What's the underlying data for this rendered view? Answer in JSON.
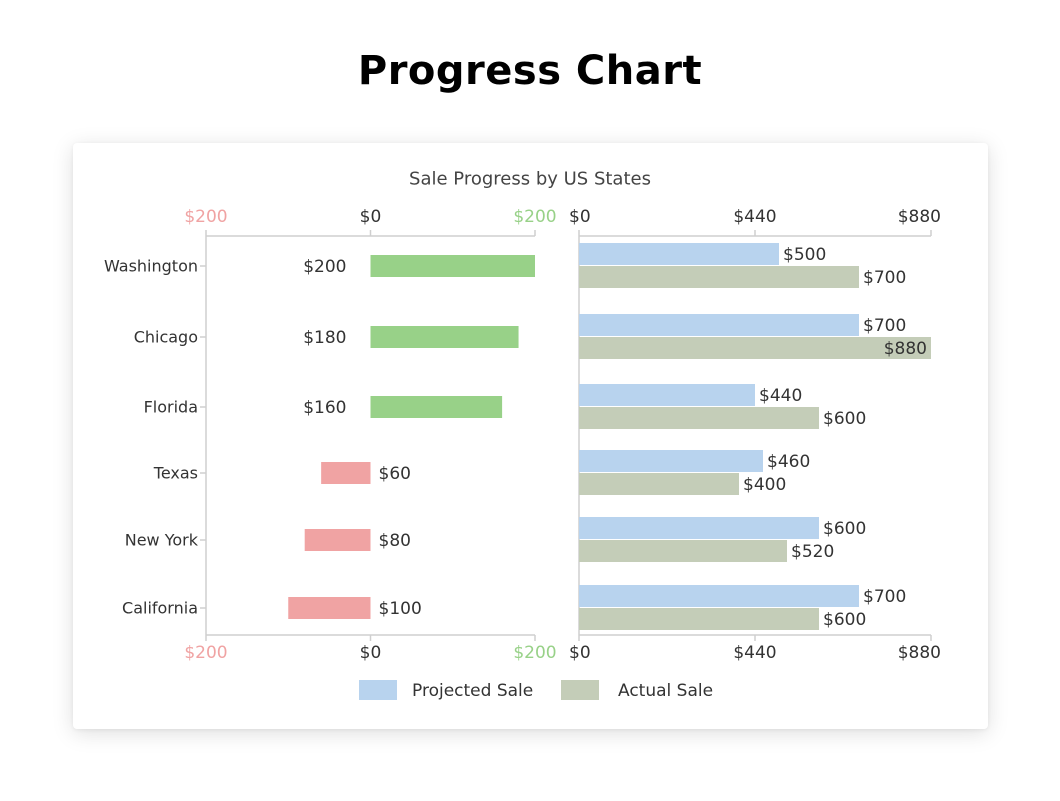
{
  "page": {
    "title": "Progress Chart"
  },
  "chart_data": {
    "type": "bar",
    "title": "Sale Progress by US States",
    "categories": [
      "Washington",
      "Chicago",
      "Florida",
      "Texas",
      "New York",
      "California"
    ],
    "progress": {
      "values": [
        200,
        180,
        160,
        -60,
        -80,
        -100
      ],
      "labels": [
        "$200",
        "$180",
        "$160",
        "$60",
        "$80",
        "$100"
      ],
      "xlim": [
        -200,
        200
      ],
      "ticks": [
        -200,
        0,
        200
      ],
      "tick_labels": [
        "$200",
        "$0",
        "$200"
      ],
      "tick_colors": [
        "#f0a3a3",
        "#333333",
        "#98d188"
      ],
      "positive_color": "#98d188",
      "negative_color": "#f0a3a3"
    },
    "sales": {
      "xlim": [
        0,
        880
      ],
      "ticks": [
        0,
        440,
        880
      ],
      "tick_labels": [
        "$0",
        "$440",
        "$880"
      ],
      "series": [
        {
          "name": "Projected Sale",
          "color": "#b8d3ee",
          "values": [
            500,
            700,
            440,
            460,
            600,
            700
          ],
          "labels": [
            "$500",
            "$700",
            "$440",
            "$460",
            "$600",
            "$700"
          ]
        },
        {
          "name": "Actual Sale",
          "color": "#c4cdb8",
          "values": [
            700,
            880,
            600,
            400,
            520,
            600
          ],
          "labels": [
            "$700",
            "$880",
            "$600",
            "$400",
            "$520",
            "$600"
          ]
        }
      ]
    },
    "legend": {
      "position": "bottom"
    },
    "grid": false
  }
}
